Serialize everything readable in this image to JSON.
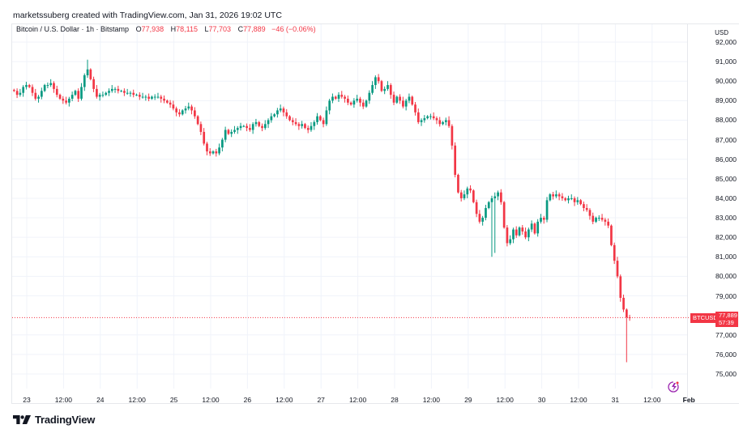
{
  "attribution": "marketssuberg created with TradingView.com, Jan 31, 2026 19:02 UTC",
  "legend": {
    "symbol": "Bitcoin / U.S. Dollar · 1h · Bitstamp",
    "o_label": "O",
    "o": "77,938",
    "h_label": "H",
    "h": "78,115",
    "l_label": "L",
    "l": "77,703",
    "c_label": "C",
    "c": "77,889",
    "change": "−46 (−0.06%)"
  },
  "price_axis": {
    "unit": "USD",
    "ticks": [
      "92,000",
      "91,000",
      "90,000",
      "89,000",
      "88,000",
      "87,000",
      "86,000",
      "85,000",
      "84,000",
      "83,000",
      "82,000",
      "81,000",
      "80,000",
      "79,000",
      "77,000",
      "76,000",
      "75,000"
    ]
  },
  "time_axis": {
    "ticks": [
      "23",
      "12:00",
      "24",
      "12:00",
      "25",
      "12:00",
      "26",
      "12:00",
      "27",
      "12:00",
      "28",
      "12:00",
      "29",
      "12:00",
      "30",
      "12:00",
      "31",
      "12:00",
      "Feb"
    ]
  },
  "price_tag": {
    "symbol": "BTCUSD",
    "price": "77,889",
    "countdown": "57:39"
  },
  "footer": {
    "logo_text": "TradingView"
  },
  "colors": {
    "up": "#089981",
    "down": "#f23645",
    "grid": "#f0f3fa",
    "text": "#131722"
  },
  "chart_data": {
    "type": "candlestick",
    "title": "Bitcoin / U.S. Dollar · 1h · Bitstamp",
    "xlabel": "",
    "ylabel": "USD",
    "ylim": [
      74500,
      92500
    ],
    "grid": true,
    "x_start": "Jan 22 19:00",
    "interval": "1h",
    "last": {
      "open": 77938,
      "high": 78115,
      "low": 77703,
      "close": 77889,
      "change": -46,
      "change_pct": -0.06
    },
    "closes": [
      89500,
      89300,
      89400,
      89700,
      89800,
      89700,
      89400,
      89100,
      89200,
      89500,
      89800,
      89800,
      89900,
      89600,
      89300,
      89100,
      89000,
      88900,
      89100,
      89300,
      89500,
      89100,
      89700,
      90300,
      90600,
      90100,
      89600,
      89200,
      89300,
      89300,
      89400,
      89500,
      89600,
      89600,
      89500,
      89500,
      89400,
      89400,
      89400,
      89300,
      89300,
      89200,
      89200,
      89200,
      89100,
      89200,
      89200,
      89200,
      89100,
      89000,
      88900,
      88800,
      88600,
      88400,
      88300,
      88500,
      88600,
      88700,
      88500,
      88200,
      87800,
      87400,
      86800,
      86400,
      86300,
      86400,
      86300,
      86600,
      87000,
      87500,
      87300,
      87400,
      87500,
      87600,
      87700,
      87700,
      87600,
      87500,
      87800,
      87900,
      87700,
      87600,
      87800,
      88000,
      88200,
      88300,
      88500,
      88600,
      88400,
      88200,
      88000,
      87900,
      87800,
      87700,
      87800,
      87600,
      87500,
      87700,
      87900,
      88200,
      88000,
      87800,
      88500,
      89000,
      89200,
      89100,
      89300,
      89200,
      89100,
      88900,
      88800,
      89000,
      89100,
      88900,
      88700,
      89000,
      89400,
      89800,
      90200,
      90000,
      89500,
      89600,
      89800,
      89300,
      88900,
      89200,
      89000,
      88700,
      89000,
      89200,
      88800,
      88400,
      87900,
      88000,
      88100,
      88200,
      88200,
      88100,
      88000,
      87800,
      87900,
      88000,
      87700,
      86700,
      85200,
      84300,
      84000,
      84200,
      84500,
      84400,
      83800,
      83200,
      82800,
      83000,
      83500,
      83800,
      84000,
      84100,
      84300,
      83800,
      82500,
      81700,
      81900,
      82400,
      82100,
      82500,
      82300,
      82000,
      82400,
      82700,
      82200,
      82800,
      83000,
      82900,
      83900,
      84200,
      84100,
      84200,
      84100,
      84000,
      83900,
      84000,
      84000,
      83800,
      83900,
      83700,
      83500,
      83400,
      83100,
      82800,
      83000,
      83000,
      82900,
      82800,
      82600,
      81600,
      80800,
      80000,
      78900,
      78300,
      77900,
      77889
    ]
  }
}
